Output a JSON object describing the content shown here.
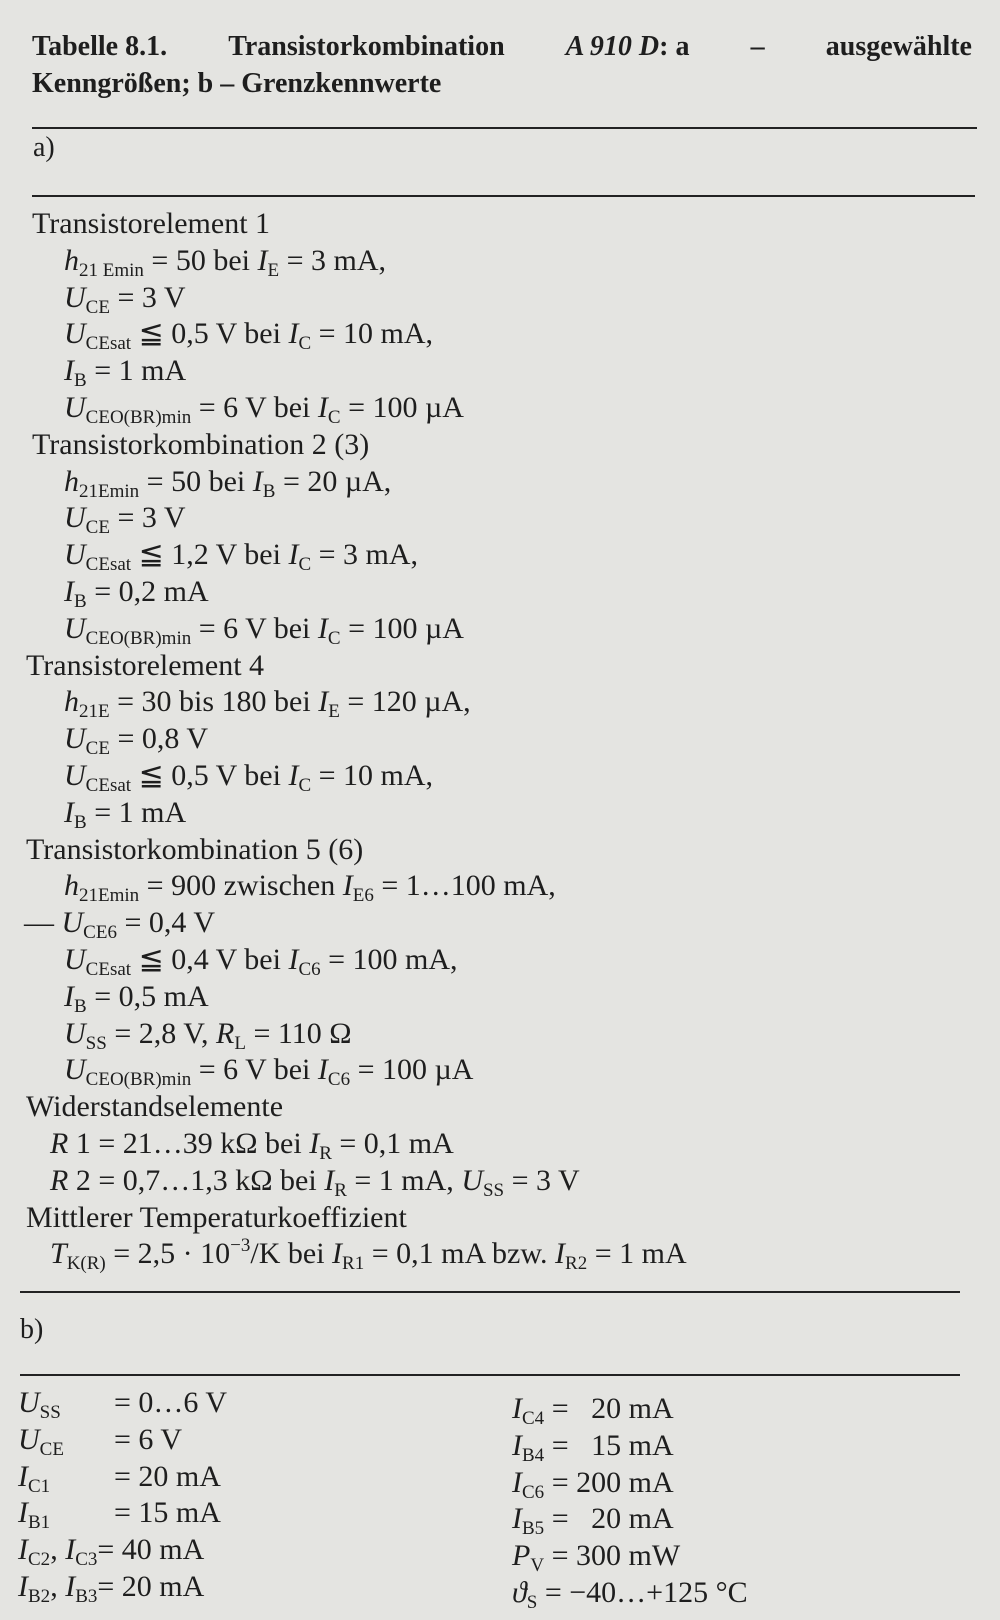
{
  "title": {
    "line1": [
      "Tabelle 8.1.",
      "Transistorkombination",
      "A 910 D",
      ": a",
      "–",
      "ausgewählte"
    ],
    "line2": "Kenngrößen; b – Grenzkennwerte"
  },
  "section_a": {
    "label": "a)",
    "lines": [
      {
        "h": 1,
        "t": [
          "n:Transistorelement 1"
        ]
      },
      {
        "t": [
          "i:h",
          "s:21 Emin",
          "n: = 50 bei ",
          "i:I",
          "s:E",
          "n: = 3 mA,"
        ]
      },
      {
        "t": [
          "i:U",
          "s:CE",
          "n: = 3 V"
        ]
      },
      {
        "t": [
          "i:U",
          "s:CEsat",
          "n: ≦ 0,5 V bei ",
          "i:I",
          "s:C",
          "n: = 10 mA,"
        ]
      },
      {
        "t": [
          "i:I",
          "s:B",
          "n: = 1 mA"
        ]
      },
      {
        "t": [
          "i:U",
          "s:CEO(BR)min",
          "n: = 6 V bei ",
          "i:I",
          "s:C",
          "n: = 100 µA"
        ]
      },
      {
        "h": 1,
        "t": [
          "n:Transistorkombination 2 (3)"
        ]
      },
      {
        "t": [
          "i:h",
          "s:21Emin",
          "n: = 50 bei ",
          "i:I",
          "s:B",
          "n: = 20 µA,"
        ]
      },
      {
        "t": [
          "i:U",
          "s:CE",
          "n: = 3 V"
        ]
      },
      {
        "t": [
          "i:U",
          "s:CEsat",
          "n: ≦ 1,2 V bei ",
          "i:I",
          "s:C",
          "n: = 3 mA,"
        ]
      },
      {
        "t": [
          "i:I",
          "s:B",
          "n: = 0,2 mA"
        ]
      },
      {
        "t": [
          "i:U",
          "s:CEO(BR)min",
          "n: = 6 V bei ",
          "i:I",
          "s:C",
          "n: = 100 µA"
        ]
      },
      {
        "h": 1,
        "t": [
          "n:Transistorelement 4"
        ]
      },
      {
        "t": [
          "i:h",
          "s:21E",
          "n: = 30 bis 180 bei ",
          "i:I",
          "s:E",
          "n: = 120 µA,"
        ]
      },
      {
        "t": [
          "i:U",
          "s:CE",
          "n: = 0,8 V"
        ]
      },
      {
        "t": [
          "i:U",
          "s:CEsat",
          "n: ≦ 0,5 V bei ",
          "i:I",
          "s:C",
          "n: = 10 mA,"
        ]
      },
      {
        "t": [
          "i:I",
          "s:B",
          "n: = 1 mA"
        ]
      },
      {
        "h": 1,
        "t": [
          "n:Transistorkombination 5 (6)"
        ]
      },
      {
        "t": [
          "i:h",
          "s:21Emin",
          "n: = 900 zwischen ",
          "i:I",
          "s:E6",
          "n: = 1…100 mA,"
        ]
      },
      {
        "d": 1,
        "t": [
          "n:— ",
          "i:U",
          "s:CE6",
          "n: = 0,4 V"
        ]
      },
      {
        "t": [
          "i:U",
          "s:CEsat",
          "n: ≦ 0,4 V bei ",
          "i:I",
          "s:C6",
          "n: = 100 mA,"
        ]
      },
      {
        "t": [
          "i:I",
          "s:B",
          "n: = 0,5 mA"
        ]
      },
      {
        "t": [
          "i:U",
          "s:SS",
          "n: = 2,8 V, ",
          "i:R",
          "s:L",
          "n: = 110 Ω"
        ]
      },
      {
        "t": [
          "i:U",
          "s:CEO(BR)min",
          "n: = 6 V bei ",
          "i:I",
          "s:C6",
          "n: = 100 µA"
        ]
      },
      {
        "h": 1,
        "t": [
          "n:Widerstandselemente"
        ]
      },
      {
        "r": 1,
        "t": [
          "i:R",
          "n: 1 = 21…39 kΩ bei ",
          "i:I",
          "s:R",
          "n: = 0,1 mA"
        ]
      },
      {
        "r": 1,
        "t": [
          "i:R",
          "n: 2 = 0,7…1,3 kΩ bei ",
          "i:I",
          "s:R",
          "n: = 1 mA, ",
          "i:U",
          "s:SS",
          "n: = 3 V"
        ]
      },
      {
        "h": 1,
        "t": [
          "n:Mittlerer Temperaturkoeffizient"
        ]
      },
      {
        "r": 1,
        "t": [
          "i:T",
          "s:K(R)",
          "n: = 2,5 · 10",
          "p:−3",
          "n:/K bei ",
          "i:I",
          "s:R1",
          "n: = 0,1 mA bzw. ",
          "i:I",
          "s:R2",
          "n: = 1 mA"
        ]
      }
    ]
  },
  "section_b": {
    "label": "b)",
    "left": [
      {
        "label": [
          "i:U",
          "s:SS"
        ],
        "value": "= 0…6 V"
      },
      {
        "label": [
          "i:U",
          "s:CE"
        ],
        "value": "= 6 V"
      },
      {
        "label": [
          "i:I",
          "s:C1"
        ],
        "value": "= 20 mA"
      },
      {
        "label": [
          "i:I",
          "s:B1"
        ],
        "value": "= 15 mA"
      },
      {
        "label": [
          "i:I",
          "s:C2",
          "n:, ",
          "i:I",
          "s:C3"
        ],
        "value": "= 40 mA"
      },
      {
        "label": [
          "i:I",
          "s:B2",
          "n:, ",
          "i:I",
          "s:B3"
        ],
        "value": "= 20 mA"
      }
    ],
    "right": [
      {
        "label": [
          "i:I",
          "s:C4"
        ],
        "value": " =   20 mA"
      },
      {
        "label": [
          "i:I",
          "s:B4"
        ],
        "value": " =   15 mA"
      },
      {
        "label": [
          "i:I",
          "s:C6"
        ],
        "value": " = 200 mA"
      },
      {
        "label": [
          "i:I",
          "s:B5"
        ],
        "value": " =   20 mA"
      },
      {
        "label": [
          "i:P",
          "s:V"
        ],
        "value": " = 300 mW"
      },
      {
        "label": [
          "i:ϑ",
          "s:S"
        ],
        "value": " = −40…+125 °C"
      }
    ]
  }
}
